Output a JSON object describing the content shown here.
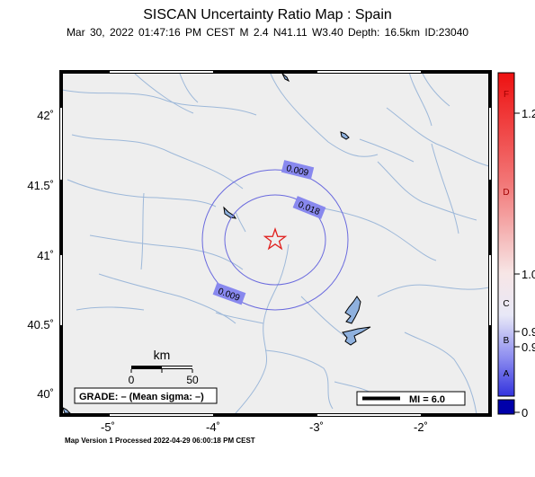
{
  "title": "SISCAN Uncertainty Ratio Map : Spain",
  "subtitle": "Mar 30, 2022 01:47:16 PM CEST   M 2.4   N41.11 W3.40   Depth: 16.5km   ID:23040",
  "footer": "Map Version 1 Processed 2022-04-29 06:00:18 PM CEST",
  "map": {
    "lat_ticks": [
      "42˚",
      "41.5˚",
      "41˚",
      "40.5˚",
      "40˚"
    ],
    "lon_ticks": [
      "-5˚",
      "-4˚",
      "-3˚",
      "-2˚"
    ],
    "contour_labels": [
      "0.009",
      "0.018",
      "0.009"
    ],
    "scale_bar": {
      "unit": "km",
      "tick_left": "0",
      "tick_right": "50"
    },
    "grade_text": "GRADE: – (Mean sigma: –)",
    "mi_legend": "MI = 6.0",
    "epicenter_icon": "star-icon"
  },
  "colors": {
    "land": "#eeeeee",
    "rivers": "#9db8d9",
    "contour": "#6a6ade",
    "label_box": "#8888ee",
    "star": "#e0201e",
    "water": "#8fb1de"
  },
  "colorbar": {
    "values": [
      "1.2",
      "1.0",
      "0.9",
      "0.9",
      "0"
    ],
    "grades": [
      "F",
      "D",
      "C",
      "B",
      "A"
    ]
  }
}
